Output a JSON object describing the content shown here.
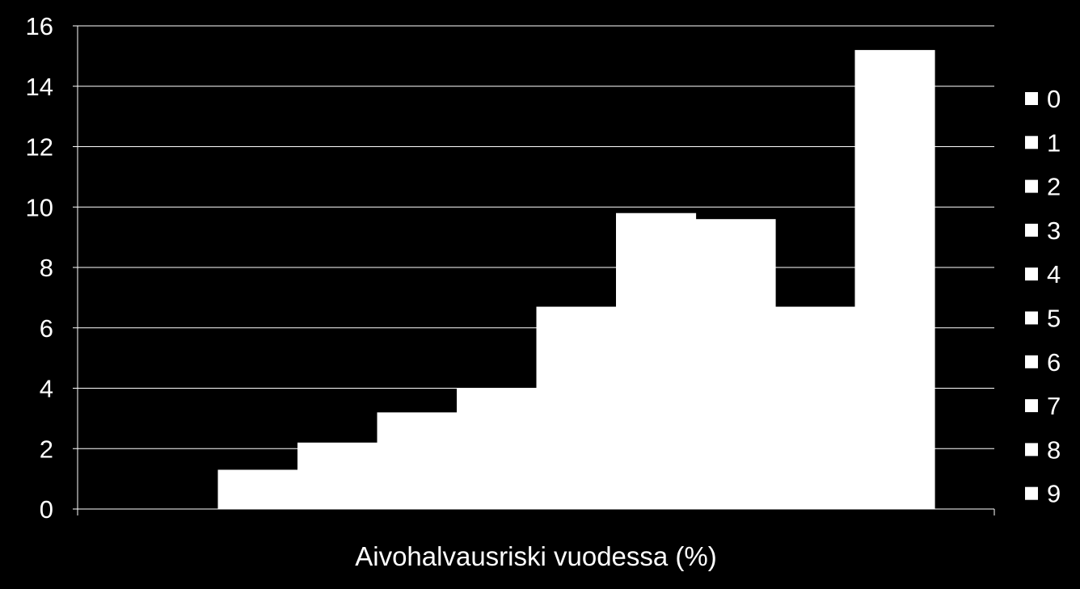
{
  "chart_data": {
    "type": "bar",
    "categories": [
      "0",
      "1",
      "2",
      "3",
      "4",
      "5",
      "6",
      "7",
      "8",
      "9"
    ],
    "series": [
      {
        "values": [
          0,
          1.3,
          2.2,
          3.2,
          4.0,
          6.7,
          9.8,
          9.6,
          6.7,
          15.2
        ]
      }
    ],
    "legend": [
      "0",
      "1",
      "2",
      "3",
      "4",
      "5",
      "6",
      "7",
      "8",
      "9"
    ],
    "xlabel": "Aivohalvausriski vuodessa (%)",
    "ylabel": "",
    "title": "",
    "ylim": [
      0,
      16
    ],
    "yticks": [
      0,
      2,
      4,
      6,
      8,
      10,
      12,
      14,
      16
    ],
    "grid": true,
    "legend_position": "right",
    "colors": {
      "background": "#000000",
      "bar": "#ffffff",
      "grid": "#ffffff",
      "text": "#ffffff"
    }
  }
}
